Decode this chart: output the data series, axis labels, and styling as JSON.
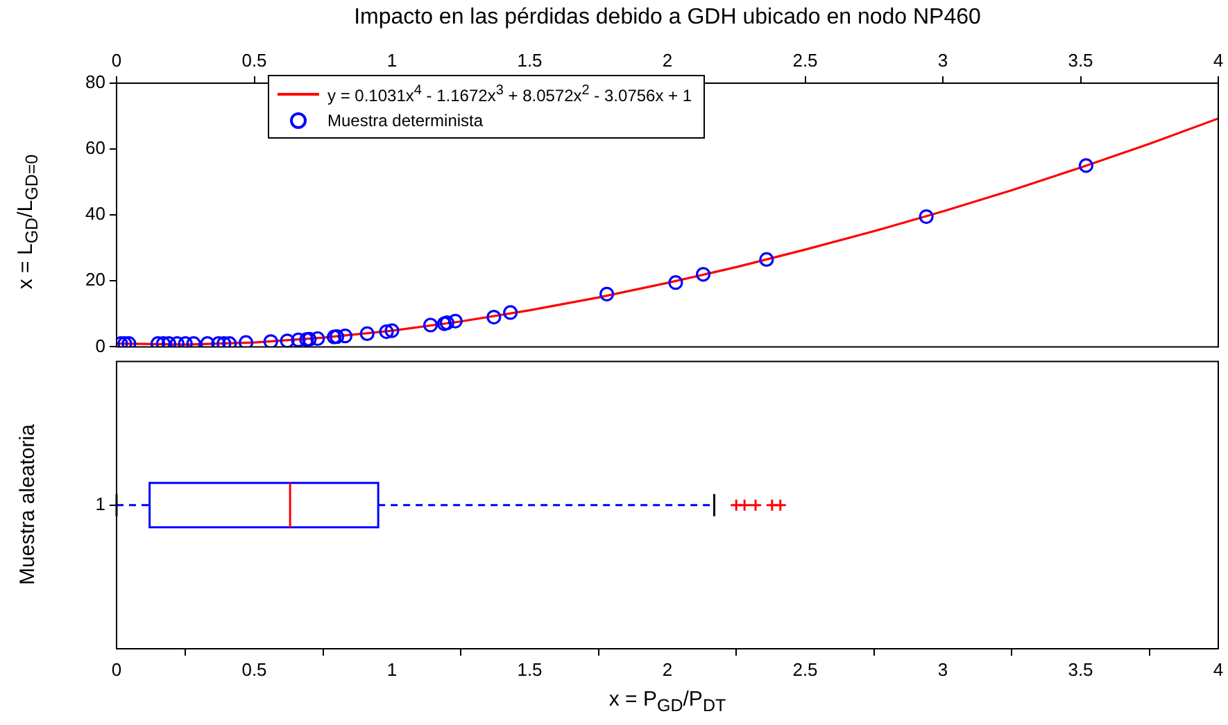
{
  "chart_data": [
    {
      "type": "scatter",
      "title": "Impacto en las pérdidas debido a GDH ubicado en nodo NP460",
      "ylabel": "x = L$_{GD}$/L$_{GD=0}$",
      "xlim": [
        0,
        4
      ],
      "xticks": [
        0,
        0.5,
        1,
        1.5,
        2,
        2.5,
        3,
        3.5,
        4
      ],
      "ylim": [
        0,
        80
      ],
      "yticks": [
        0,
        20,
        40,
        60,
        80
      ],
      "legend": "top left",
      "series": [
        {
          "name": "y =  0.1031x$^{4}$ - 1.1672x$^{3}$ + 8.0572x$^{2}$ - 3.0756x + 1",
          "type": "line",
          "color": "#ff0000",
          "marker": "none",
          "x": [
            0,
            0.25,
            0.5,
            0.75,
            1,
            1.25,
            1.5,
            1.75,
            2,
            2.25,
            2.5,
            2.75,
            3,
            3.25,
            3.5,
            3.75,
            4
          ],
          "values": [
            1,
            0.7,
            1.3,
            2.8,
            4.9,
            7.7,
            11.1,
            15,
            19.4,
            24.2,
            29.5,
            35.1,
            41.1,
            47.5,
            54.4,
            61.6,
            69.3
          ]
        },
        {
          "name": "Muestra determinista",
          "type": "scatter",
          "color": "#0000ff",
          "marker": "circle",
          "x": [
            0.015,
            0.03,
            0.045,
            0.15,
            0.17,
            0.19,
            0.22,
            0.25,
            0.28,
            0.33,
            0.37,
            0.39,
            0.41,
            0.47,
            0.56,
            0.62,
            0.66,
            0.69,
            0.7,
            0.73,
            0.79,
            0.8,
            0.83,
            0.91,
            0.98,
            1,
            1.14,
            1.19,
            1.2,
            1.23,
            1.37,
            1.43,
            1.78,
            2.03,
            2.13,
            2.36,
            2.94,
            3.52
          ],
          "values": [
            1,
            1,
            1,
            1,
            1,
            1,
            1,
            1,
            1,
            1,
            1,
            1,
            1,
            1.3,
            1.6,
            1.8,
            2.1,
            2.2,
            2.3,
            2.5,
            3,
            3.1,
            3.3,
            4,
            4.6,
            4.9,
            6.6,
            7,
            7.3,
            7.8,
            9,
            10.4,
            16,
            19.5,
            22,
            26.5,
            39.5,
            55
          ]
        }
      ]
    },
    {
      "type": "box",
      "orientation": "horizontal",
      "categories": [
        "1"
      ],
      "xlabel": "x = P$_{GD}$/P$_{DT}$",
      "ylabel": "Muestra aleatoria",
      "xlim": [
        0,
        4
      ],
      "xticks": [
        0,
        0.5,
        1,
        1.5,
        2,
        2.5,
        3,
        3.5,
        4
      ],
      "color": "#0000ff",
      "boxes": [
        {
          "low": 0,
          "q1": 0.12,
          "median": 0.63,
          "q3": 0.95,
          "high": 2.17,
          "outliers": [
            2.25,
            2.28,
            2.32,
            2.38,
            2.41
          ]
        }
      ]
    }
  ]
}
